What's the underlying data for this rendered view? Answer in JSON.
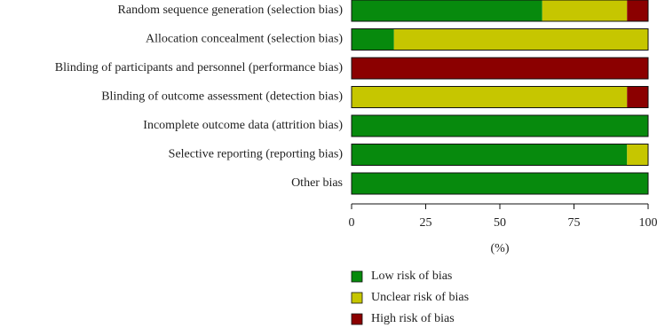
{
  "chart_data": {
    "type": "stacked-bar-horizontal",
    "categories": [
      "Random sequence generation (selection bias)",
      "Allocation concealment (selection bias)",
      "Blinding of participants and personnel (performance bias)",
      "Blinding of outcome assessment (detection bias)",
      "Incomplete outcome data (attrition bias)",
      "Selective reporting (reporting bias)",
      "Other bias"
    ],
    "series": [
      {
        "name": "Low risk of bias",
        "color": "#078a0d",
        "values": [
          64.3,
          14.3,
          0,
          0,
          100,
          92.9,
          100
        ]
      },
      {
        "name": "Unclear risk of bias",
        "color": "#c6c600",
        "values": [
          28.6,
          85.7,
          0,
          92.9,
          0,
          7.1,
          0
        ]
      },
      {
        "name": "High risk of bias",
        "color": "#8b0000",
        "values": [
          7.1,
          0,
          100,
          7.1,
          0,
          0,
          0
        ]
      }
    ],
    "xlabel": "(%)",
    "xlim": [
      0,
      100
    ],
    "xticks": [
      0,
      25,
      50,
      75,
      100
    ]
  }
}
